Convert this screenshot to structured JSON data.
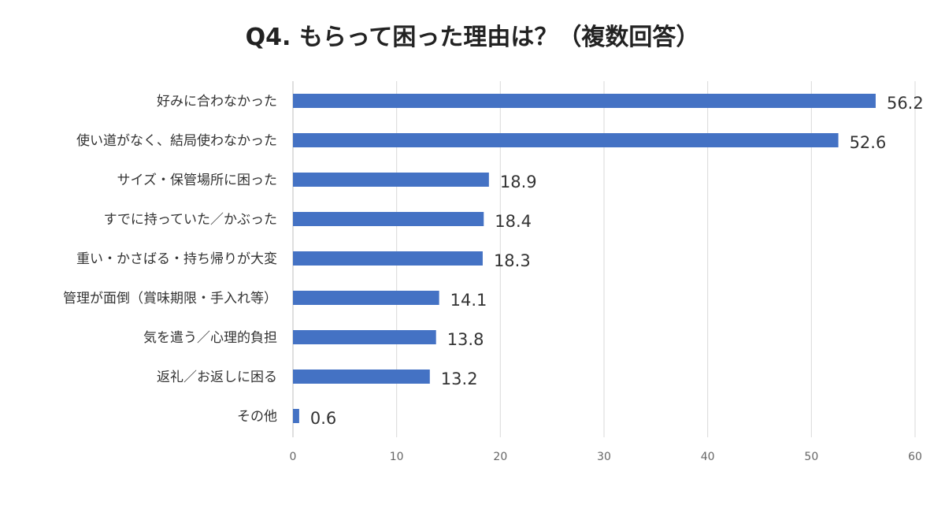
{
  "chart_data": {
    "type": "bar",
    "orientation": "horizontal",
    "title": "Q4. もらって困った理由は？（複数回答）",
    "categories": [
      "好みに合わなかった",
      "使い道がなく、結局使わなかった",
      "サイズ・保管場所に困った",
      "すでに持っていた／かぶった",
      "重い・かさばる・持ち帰りが大変",
      "管理が面倒（賞味期限・手入れ等）",
      "気を遣う／心理的負担",
      "返礼／お返しに困る",
      "その他"
    ],
    "values": [
      56.2,
      52.6,
      18.9,
      18.4,
      18.3,
      14.1,
      13.8,
      13.2,
      0.6
    ],
    "xlim": [
      0,
      60
    ],
    "xticks": [
      0,
      10,
      20,
      30,
      40,
      50,
      60
    ],
    "grid": true,
    "bar_color": "#4472C4",
    "data_labels": true
  }
}
